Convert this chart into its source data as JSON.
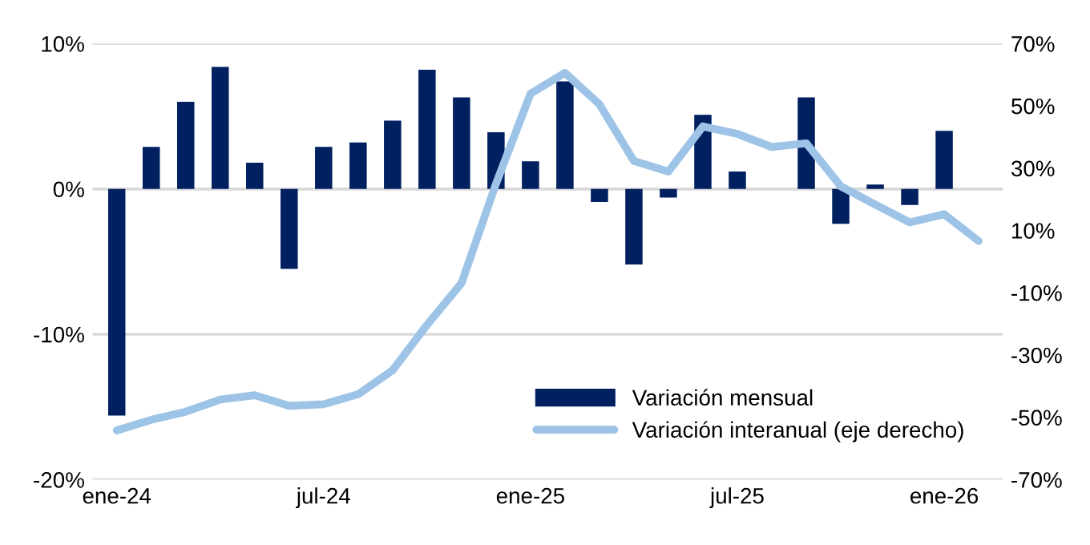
{
  "chart_data": {
    "type": "bar",
    "categories": [
      "ene-24",
      null,
      null,
      null,
      null,
      null,
      "jul-24",
      null,
      null,
      null,
      null,
      null,
      "ene-25",
      null,
      null,
      null,
      null,
      null,
      "jul-25",
      null,
      null,
      null,
      null,
      null,
      "ene-26",
      null
    ],
    "series": [
      {
        "name": "Variación mensual",
        "color": "#002060",
        "values": [
          -15.6,
          2.9,
          6.0,
          8.4,
          1.8,
          -5.5,
          2.9,
          3.2,
          4.7,
          8.2,
          6.3,
          3.9,
          1.9,
          7.4,
          -0.9,
          -5.2,
          -0.6,
          5.1,
          1.2,
          0,
          6.3,
          -2.4,
          0.3,
          -1.1,
          4.0,
          null
        ]
      },
      {
        "name": "Variación interanual (eje derecho)",
        "type": "line",
        "axis": "y2",
        "color": "#9dc3e6",
        "values": [
          -54.2,
          -50.8,
          -48.2,
          -44.3,
          -42.9,
          -46.3,
          -45.8,
          -42.6,
          -34.9,
          -20.3,
          -6.9,
          25,
          53.9,
          60.6,
          50.5,
          32.3,
          28.9,
          43.4,
          41.0,
          36.8,
          38.0,
          24.2,
          18.3,
          12.6,
          15.2,
          6.6
        ]
      }
    ],
    "ylim": [
      -20,
      10
    ],
    "yticks": [
      {
        "value": -20,
        "label": "-20%"
      },
      {
        "value": -10,
        "label": "-10%"
      },
      {
        "value": 0,
        "label": "0%"
      },
      {
        "value": 10,
        "label": "10%"
      }
    ],
    "y2lim": [
      -70,
      70
    ],
    "y2ticks": [
      {
        "value": -70,
        "label": "-70%"
      },
      {
        "value": -50,
        "label": "-50%"
      },
      {
        "value": -30,
        "label": "-30%"
      },
      {
        "value": -10,
        "label": "-10%"
      },
      {
        "value": 10,
        "label": "10%"
      },
      {
        "value": 30,
        "label": "30%"
      },
      {
        "value": 50,
        "label": "50%"
      },
      {
        "value": 70,
        "label": "70%"
      }
    ],
    "grid": "y",
    "legend": "bottom right"
  }
}
